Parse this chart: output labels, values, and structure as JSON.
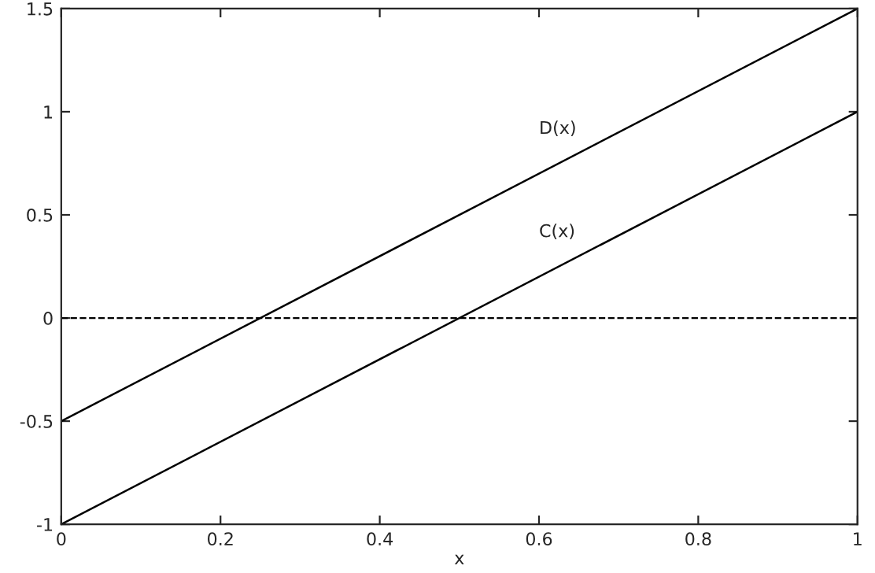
{
  "chart_data": {
    "type": "line",
    "xlabel": "x",
    "x": [
      0,
      1
    ],
    "series": [
      {
        "name": "D(x)",
        "color": "#000000",
        "values": [
          -0.5,
          1.5
        ]
      },
      {
        "name": "C(x)",
        "color": "#000000",
        "values": [
          -1,
          1
        ]
      }
    ],
    "xlim": [
      0,
      1
    ],
    "ylim": [
      -1,
      1.5
    ],
    "xticks": [
      0,
      0.2,
      0.4,
      0.6,
      0.8,
      1
    ],
    "yticks": [
      -1,
      -0.5,
      0,
      0.5,
      1,
      1.5
    ],
    "ref_lines": [
      {
        "axis": "y",
        "value": 0,
        "color": "#000000",
        "line_style": "dashed"
      }
    ],
    "grid": false,
    "legend": false,
    "line_style": "solid",
    "marker": "none"
  }
}
